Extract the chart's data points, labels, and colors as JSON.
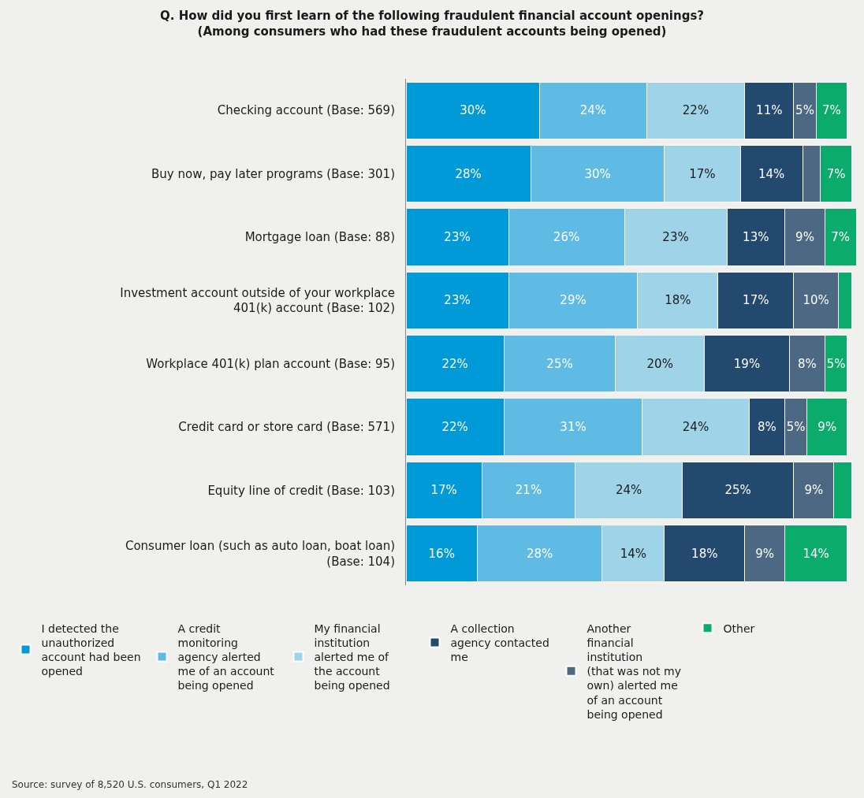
{
  "chart_data": {
    "type": "bar",
    "orientation": "horizontal",
    "stacked": true,
    "title": "Q. How did you first learn of the following fraudulent financial account openings?",
    "subtitle": "(Among consumers who had these fraudulent accounts being opened)",
    "categories": [
      "Checking account (Base: 569)",
      "Buy now, pay later programs (Base: 301)",
      "Mortgage loan (Base: 88)",
      "Investment account outside of your workplace 401(k) account (Base: 102)",
      "Workplace 401(k) plan account (Base: 95)",
      "Credit card or store card (Base: 571)",
      "Equity line of credit (Base: 103)",
      "Consumer loan (such as auto loan, boat loan) (Base: 104)"
    ],
    "series": [
      {
        "name": "I detected the unauthorized account had been opened",
        "color": "#009ad9",
        "values": [
          30,
          28,
          23,
          23,
          22,
          22,
          17,
          16
        ],
        "value_labels": [
          "30%",
          "28%",
          "23%",
          "23%",
          "22%",
          "22%",
          "17%",
          "16%"
        ]
      },
      {
        "name": "A credit monitoring agency alerted me of an account being opened",
        "color": "#5fbbe3",
        "values": [
          24,
          30,
          26,
          29,
          25,
          31,
          21,
          28
        ],
        "value_labels": [
          "24%",
          "30%",
          "26%",
          "29%",
          "25%",
          "31%",
          "21%",
          "28%"
        ]
      },
      {
        "name": "My financial institution alerted me of the account being opened",
        "color": "#9ed3e8",
        "values": [
          22,
          17,
          23,
          18,
          20,
          24,
          24,
          14
        ],
        "value_labels": [
          "22%",
          "17%",
          "23%",
          "18%",
          "20%",
          "24%",
          "24%",
          "14%"
        ]
      },
      {
        "name": "A collection agency contacted me",
        "color": "#24496e",
        "values": [
          11,
          14,
          13,
          17,
          19,
          8,
          25,
          18
        ],
        "value_labels": [
          "11%",
          "14%",
          "13%",
          "17%",
          "19%",
          "8%",
          "25%",
          "18%"
        ]
      },
      {
        "name": "Another financial institution (that was not my own) alerted me of an account being opened",
        "color": "#4d6882",
        "values": [
          5,
          4,
          9,
          10,
          8,
          5,
          9,
          9
        ],
        "value_labels": [
          "5%",
          null,
          "9%",
          "10%",
          "8%",
          "5%",
          "9%",
          "9%"
        ]
      },
      {
        "name": "Other",
        "color": "#0aab6b",
        "values": [
          7,
          7,
          7,
          3,
          5,
          9,
          4,
          14
        ],
        "value_labels": [
          "7%",
          "7%",
          "7%",
          null,
          "5%",
          "9%",
          null,
          "14%"
        ]
      }
    ],
    "xlim": [
      0,
      101
    ],
    "tick_labels": "y",
    "legend": "bottom",
    "annotations": [
      "Source: survey of 8,520 U.S. consumers, Q1 2022"
    ]
  }
}
